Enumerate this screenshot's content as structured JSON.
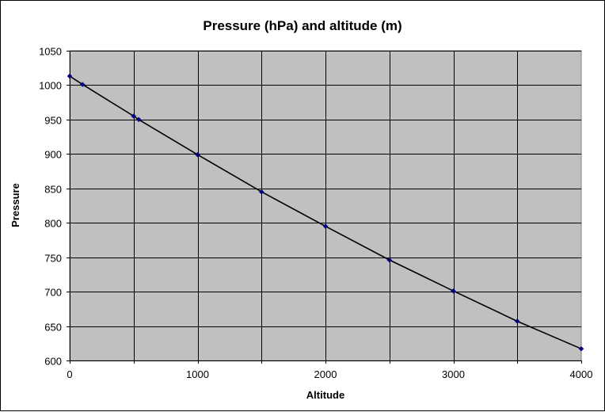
{
  "chart_data": {
    "type": "line",
    "title": "Pressure (hPa) and altitude (m)",
    "xlabel": "Altitude",
    "ylabel": "Pressure",
    "xlim": [
      0,
      4000
    ],
    "ylim": [
      600,
      1050
    ],
    "xticks": [
      0,
      1000,
      2000,
      3000,
      4000
    ],
    "yticks": [
      600,
      650,
      700,
      750,
      800,
      850,
      900,
      950,
      1000,
      1050
    ],
    "grid": true,
    "legend": "none",
    "series": [
      {
        "x": [
          0,
          100,
          500,
          540,
          1000,
          1500,
          2000,
          2500,
          3000,
          3500,
          4000
        ],
        "y": [
          1013,
          1001,
          955,
          950,
          899,
          845,
          795,
          746,
          701,
          657,
          617
        ]
      }
    ],
    "colors": {
      "plot_background": "#c0c0c0",
      "gridline": "#000000",
      "line": "#000000",
      "marker": "#000080"
    }
  }
}
